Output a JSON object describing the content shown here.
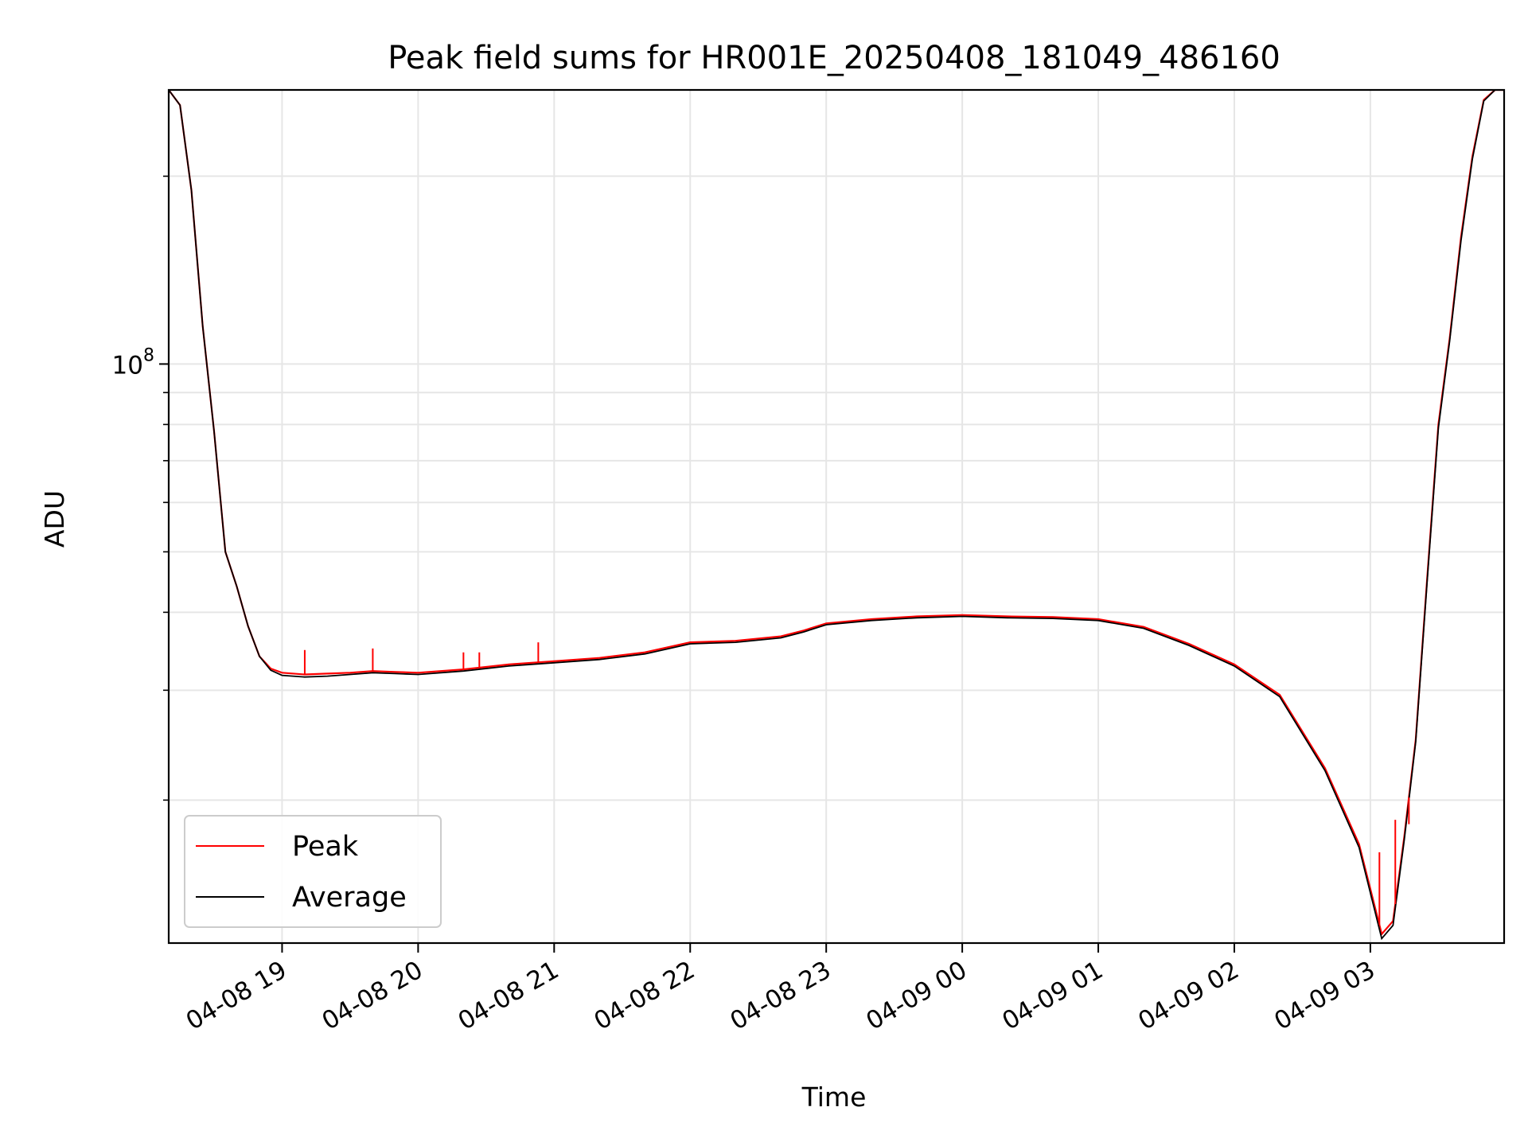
{
  "chart_data": {
    "type": "line",
    "title": "Peak field sums for HR001E_20250408_181049_486160",
    "xlabel": "Time",
    "ylabel": "ADU",
    "y_scale": "log",
    "ylim": [
      11800000,
      275000000
    ],
    "xlim": [
      "04-08 18:10",
      "04-09 03:59"
    ],
    "grid": true,
    "legend_position": "lower-left",
    "x_ticks": [
      "04-08 19",
      "04-08 20",
      "04-08 21",
      "04-08 22",
      "04-08 23",
      "04-09 00",
      "04-09 01",
      "04-09 02",
      "04-09 03"
    ],
    "y_tick_labels": [
      {
        "base": "10",
        "exp": "8",
        "value": 100000000
      }
    ],
    "y_minor_ticks": [
      20000000,
      30000000,
      40000000,
      50000000,
      60000000,
      70000000,
      80000000,
      90000000,
      200000000
    ],
    "x": [
      "04-08 18:10",
      "04-08 18:15",
      "04-08 18:20",
      "04-08 18:25",
      "04-08 18:30",
      "04-08 18:35",
      "04-08 18:40",
      "04-08 18:45",
      "04-08 18:50",
      "04-08 18:55",
      "04-08 19:00",
      "04-08 19:10",
      "04-08 19:20",
      "04-08 19:30",
      "04-08 19:40",
      "04-08 19:50",
      "04-08 20:00",
      "04-08 20:20",
      "04-08 20:40",
      "04-08 21:00",
      "04-08 21:20",
      "04-08 21:40",
      "04-08 22:00",
      "04-08 22:20",
      "04-08 22:40",
      "04-08 22:50",
      "04-08 23:00",
      "04-08 23:20",
      "04-08 23:40",
      "04-09 00:00",
      "04-09 00:20",
      "04-09 00:40",
      "04-09 01:00",
      "04-09 01:20",
      "04-09 01:40",
      "04-09 02:00",
      "04-09 02:20",
      "04-09 02:40",
      "04-09 02:55",
      "04-09 03:05",
      "04-09 03:10",
      "04-09 03:15",
      "04-09 03:20",
      "04-09 03:25",
      "04-09 03:30",
      "04-09 03:35",
      "04-09 03:40",
      "04-09 03:45",
      "04-09 03:50",
      "04-09 03:55",
      "04-09 03:59"
    ],
    "series": [
      {
        "name": "Peak",
        "color": "#ff0000",
        "values": [
          275000000,
          260000000,
          190000000,
          115000000,
          78000000,
          50000000,
          44000000,
          38000000,
          34000000,
          32500000,
          32000000,
          31800000,
          31900000,
          32000000,
          32200000,
          32100000,
          32000000,
          32400000,
          33000000,
          33400000,
          33800000,
          34500000,
          35800000,
          36000000,
          36600000,
          37400000,
          38400000,
          39000000,
          39400000,
          39600000,
          39400000,
          39300000,
          39000000,
          37900000,
          35600000,
          33000000,
          29500000,
          22500000,
          17000000,
          12200000,
          12800000,
          17500000,
          25000000,
          45000000,
          80000000,
          110000000,
          160000000,
          215000000,
          265000000,
          275000000,
          275000000
        ]
      },
      {
        "name": "Average",
        "color": "#000000",
        "values": [
          275000000,
          260000000,
          190000000,
          115000000,
          78000000,
          50000000,
          44000000,
          38000000,
          34000000,
          32300000,
          31700000,
          31500000,
          31600000,
          31800000,
          32000000,
          31900000,
          31800000,
          32200000,
          32800000,
          33200000,
          33600000,
          34300000,
          35600000,
          35800000,
          36400000,
          37200000,
          38200000,
          38800000,
          39200000,
          39400000,
          39200000,
          39100000,
          38800000,
          37700000,
          35400000,
          32800000,
          29300000,
          22300000,
          16800000,
          12000000,
          12600000,
          17300000,
          24800000,
          44500000,
          79000000,
          109000000,
          158000000,
          213000000,
          264000000,
          275000000,
          275000000
        ]
      }
    ],
    "spikes": [
      {
        "series": "Peak",
        "x": "04-08 19:10",
        "value": 34800000
      },
      {
        "series": "Peak",
        "x": "04-08 19:40",
        "value": 35000000
      },
      {
        "series": "Peak",
        "x": "04-08 20:20",
        "value": 34500000
      },
      {
        "series": "Peak",
        "x": "04-08 20:27",
        "value": 34500000
      },
      {
        "series": "Peak",
        "x": "04-08 20:53",
        "value": 35800000
      },
      {
        "series": "Peak",
        "x": "04-09 03:04",
        "value": 16500000
      },
      {
        "series": "Peak",
        "x": "04-09 03:11",
        "value": 18600000
      },
      {
        "series": "Peak",
        "x": "04-09 03:17",
        "value": 18300000
      }
    ]
  }
}
